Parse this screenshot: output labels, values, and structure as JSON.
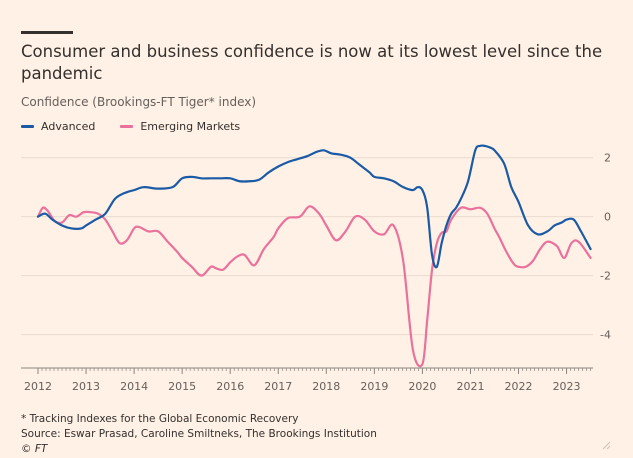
{
  "title": "Consumer and business confidence is now at its lowest level since the pandemic",
  "subtitle": "Confidence (Brookings-FT Tiger* index)",
  "footnote": "* Tracking Indexes for the Global Economic Recovery",
  "source": "Source: Eswar Prasad, Caroline Smiltneks, The Brookings Institution",
  "credit": "© FT",
  "colors": {
    "advanced": "#1b5aa5",
    "emerging": "#e9719c",
    "grid": "#e9dccf",
    "axis": "#66605c",
    "background": "#fff1e5"
  },
  "chart_data": {
    "type": "line",
    "xlim": [
      2012.0,
      2023.55
    ],
    "ylim": [
      -5.1,
      2.6
    ],
    "yticks": [
      2,
      0,
      -2,
      -4
    ],
    "ytick_labels": [
      "2",
      "0",
      "-2",
      "-4"
    ],
    "xticks": [
      2012,
      2013,
      2014,
      2015,
      2016,
      2017,
      2018,
      2019,
      2020,
      2021,
      2022,
      2023
    ],
    "xtick_labels": [
      "2012",
      "2013",
      "2014",
      "2015",
      "2016",
      "2017",
      "2018",
      "2019",
      "2020",
      "2021",
      "2022",
      "2023"
    ],
    "grid": true,
    "legend_position": "top-left",
    "series": [
      {
        "name": "Advanced",
        "color": "#1b5aa5",
        "x": [
          2012.0,
          2012.15,
          2012.3,
          2012.5,
          2012.7,
          2012.9,
          2013.0,
          2013.2,
          2013.4,
          2013.6,
          2013.8,
          2014.0,
          2014.2,
          2014.5,
          2014.8,
          2015.0,
          2015.2,
          2015.4,
          2015.6,
          2015.8,
          2016.0,
          2016.2,
          2016.4,
          2016.6,
          2016.8,
          2017.0,
          2017.2,
          2017.4,
          2017.6,
          2017.8,
          2017.95,
          2018.1,
          2018.3,
          2018.5,
          2018.7,
          2018.9,
          2019.0,
          2019.2,
          2019.4,
          2019.6,
          2019.8,
          2019.9,
          2020.0,
          2020.1,
          2020.2,
          2020.3,
          2020.4,
          2020.5,
          2020.6,
          2020.7,
          2020.8,
          2020.95,
          2021.1,
          2021.2,
          2021.3,
          2021.4,
          2021.5,
          2021.7,
          2021.85,
          2022.0,
          2022.2,
          2022.4,
          2022.6,
          2022.75,
          2022.9,
          2023.0,
          2023.15,
          2023.3,
          2023.5
        ],
        "y": [
          0.0,
          0.1,
          -0.1,
          -0.3,
          -0.4,
          -0.4,
          -0.3,
          -0.1,
          0.1,
          0.6,
          0.8,
          0.9,
          1.0,
          0.95,
          1.0,
          1.3,
          1.35,
          1.3,
          1.3,
          1.3,
          1.3,
          1.2,
          1.2,
          1.25,
          1.5,
          1.7,
          1.85,
          1.95,
          2.05,
          2.2,
          2.25,
          2.15,
          2.1,
          2.0,
          1.75,
          1.5,
          1.35,
          1.3,
          1.2,
          1.0,
          0.9,
          1.0,
          0.9,
          0.3,
          -1.3,
          -1.7,
          -0.9,
          -0.3,
          0.1,
          0.3,
          0.6,
          1.2,
          2.25,
          2.4,
          2.4,
          2.35,
          2.25,
          1.8,
          1.0,
          0.5,
          -0.3,
          -0.6,
          -0.5,
          -0.3,
          -0.2,
          -0.1,
          -0.1,
          -0.5,
          -1.1
        ]
      },
      {
        "name": "Emerging Markets",
        "color": "#e9719c",
        "x": [
          2012.0,
          2012.1,
          2012.2,
          2012.35,
          2012.5,
          2012.65,
          2012.8,
          2012.95,
          2013.1,
          2013.25,
          2013.4,
          2013.55,
          2013.7,
          2013.85,
          2014.0,
          2014.1,
          2014.3,
          2014.5,
          2014.7,
          2014.9,
          2015.0,
          2015.2,
          2015.4,
          2015.6,
          2015.7,
          2015.85,
          2016.0,
          2016.15,
          2016.3,
          2016.5,
          2016.7,
          2016.9,
          2017.0,
          2017.2,
          2017.45,
          2017.65,
          2017.85,
          2018.0,
          2018.2,
          2018.4,
          2018.6,
          2018.8,
          2019.0,
          2019.2,
          2019.4,
          2019.6,
          2019.8,
          2020.0,
          2020.1,
          2020.2,
          2020.3,
          2020.4,
          2020.5,
          2020.6,
          2020.8,
          2021.0,
          2021.2,
          2021.35,
          2021.5,
          2021.6,
          2021.75,
          2021.9,
          2022.0,
          2022.15,
          2022.3,
          2022.45,
          2022.6,
          2022.8,
          2022.95,
          2023.1,
          2023.25,
          2023.5
        ],
        "y": [
          0.0,
          0.3,
          0.2,
          -0.15,
          -0.2,
          0.05,
          0.0,
          0.15,
          0.15,
          0.1,
          -0.1,
          -0.5,
          -0.9,
          -0.8,
          -0.4,
          -0.35,
          -0.5,
          -0.5,
          -0.85,
          -1.2,
          -1.4,
          -1.7,
          -2.0,
          -1.7,
          -1.75,
          -1.8,
          -1.55,
          -1.35,
          -1.3,
          -1.65,
          -1.1,
          -0.7,
          -0.4,
          -0.05,
          0.0,
          0.35,
          0.1,
          -0.3,
          -0.8,
          -0.5,
          0.0,
          -0.1,
          -0.5,
          -0.6,
          -0.3,
          -1.5,
          -4.5,
          -5.0,
          -3.5,
          -1.8,
          -0.9,
          -0.55,
          -0.5,
          -0.1,
          0.3,
          0.25,
          0.3,
          0.1,
          -0.4,
          -0.7,
          -1.2,
          -1.6,
          -1.7,
          -1.7,
          -1.5,
          -1.1,
          -0.85,
          -1.0,
          -1.4,
          -0.9,
          -0.85,
          -1.4
        ]
      }
    ]
  }
}
